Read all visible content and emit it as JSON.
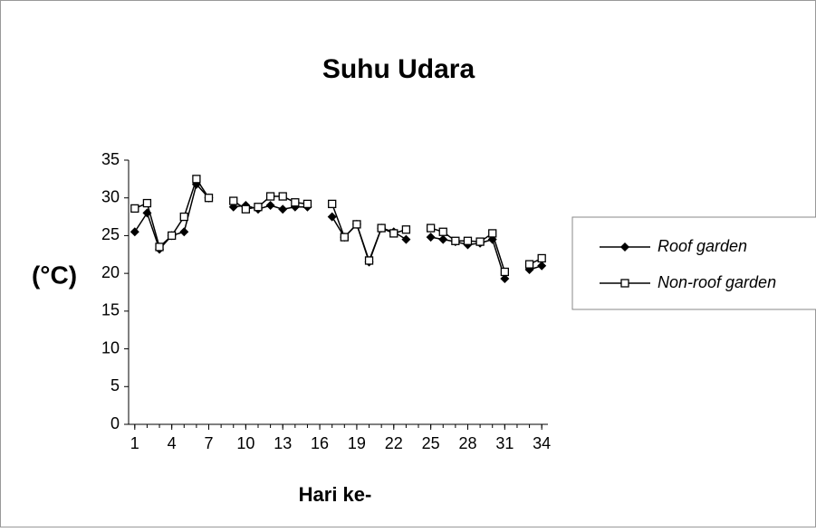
{
  "chart_data": {
    "type": "line",
    "title": "Suhu Udara",
    "xlabel": "Hari ke-",
    "ylabel": "(°C)",
    "x": [
      1,
      2,
      3,
      4,
      5,
      6,
      7,
      8,
      9,
      10,
      11,
      12,
      13,
      14,
      15,
      16,
      17,
      18,
      19,
      20,
      21,
      22,
      23,
      24,
      25,
      26,
      27,
      28,
      29,
      30,
      31,
      32,
      33,
      34
    ],
    "series": [
      {
        "name": "Roof garden",
        "color": "#000000",
        "marker": "diamond",
        "values": [
          25.5,
          28,
          23.2,
          25,
          25.5,
          31.8,
          30,
          null,
          28.8,
          29,
          28.5,
          29,
          28.5,
          28.8,
          28.8,
          null,
          27.5,
          24.8,
          26.5,
          21.5,
          26,
          25.5,
          24.5,
          null,
          24.8,
          24.5,
          24.2,
          23.8,
          24,
          24.5,
          19.3,
          null,
          20.5,
          21
        ]
      },
      {
        "name": "Non-roof garden",
        "color": "#000000",
        "marker": "square",
        "values": [
          28.6,
          29.3,
          23.5,
          25,
          27.5,
          32.5,
          30,
          null,
          29.6,
          28.5,
          28.8,
          30.2,
          30.2,
          29.4,
          29.2,
          null,
          29.2,
          24.8,
          26.5,
          21.7,
          26,
          25.3,
          25.8,
          null,
          26,
          25.5,
          24.3,
          24.3,
          24.2,
          25.3,
          20.2,
          null,
          21.2,
          22
        ]
      }
    ],
    "xlim": [
      0.5,
      34.5
    ],
    "xticks": [
      1,
      4,
      7,
      10,
      13,
      16,
      19,
      22,
      25,
      28,
      31,
      34
    ],
    "ylim": [
      0,
      35
    ],
    "yticks": [
      0,
      5,
      10,
      15,
      20,
      25,
      30,
      35
    ],
    "grid": false,
    "legend": "right"
  }
}
